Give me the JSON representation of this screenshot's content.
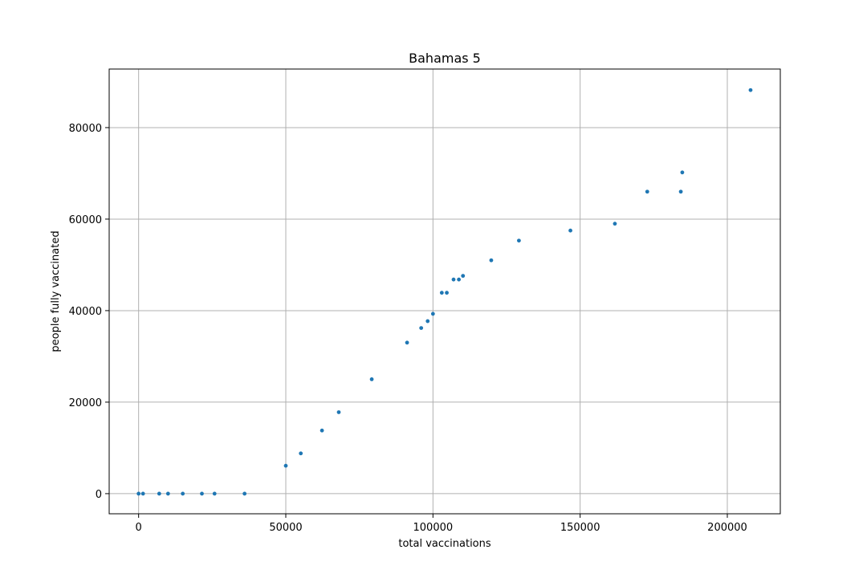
{
  "chart_data": {
    "type": "scatter",
    "title": "Bahamas 5",
    "xlabel": "total vaccinations",
    "ylabel": "people fully vaccinated",
    "xlim": [
      -10000,
      218000
    ],
    "ylim": [
      -4400,
      92800
    ],
    "xticks": [
      0,
      50000,
      100000,
      150000,
      200000
    ],
    "yticks": [
      0,
      20000,
      40000,
      60000,
      80000
    ],
    "grid": true,
    "marker_color": "#1f77b4",
    "series": [
      {
        "points": [
          [
            0,
            0
          ],
          [
            1500,
            0
          ],
          [
            7000,
            0
          ],
          [
            10000,
            0
          ],
          [
            15000,
            0
          ],
          [
            21500,
            0
          ],
          [
            25800,
            0
          ],
          [
            36000,
            0
          ],
          [
            50000,
            6100
          ],
          [
            55100,
            8800
          ],
          [
            62300,
            13800
          ],
          [
            68000,
            17800
          ],
          [
            79200,
            25000
          ],
          [
            91200,
            33000
          ],
          [
            96000,
            36200
          ],
          [
            98200,
            37700
          ],
          [
            100000,
            39300
          ],
          [
            103000,
            43900
          ],
          [
            104700,
            43900
          ],
          [
            107000,
            46800
          ],
          [
            108800,
            46800
          ],
          [
            110200,
            47600
          ],
          [
            119800,
            51000
          ],
          [
            129200,
            55300
          ],
          [
            146700,
            57500
          ],
          [
            161800,
            59000
          ],
          [
            172800,
            66000
          ],
          [
            184200,
            66000
          ],
          [
            184700,
            70200
          ],
          [
            207900,
            88200
          ]
        ]
      }
    ]
  }
}
